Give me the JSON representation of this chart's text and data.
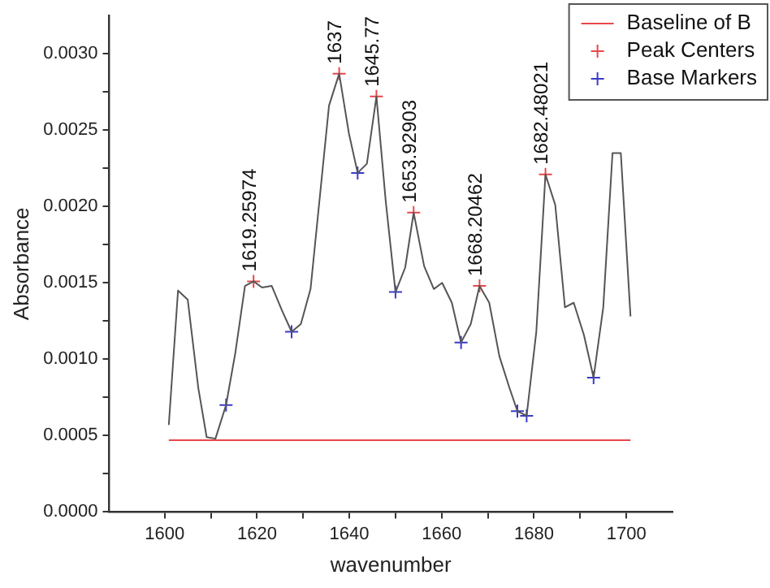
{
  "chart_data": {
    "type": "line",
    "xlabel": "wavenumber",
    "ylabel": "Absorbance",
    "legend": "top right",
    "grid": false,
    "xlim": [
      1588,
      1710
    ],
    "ylim": [
      0,
      0.00325
    ],
    "xticks": [
      1600,
      {
        "value": 1610,
        "label": null
      },
      1620,
      {
        "value": 1630,
        "label": null
      },
      1640,
      {
        "value": 1650,
        "label": null
      },
      1660,
      {
        "value": 1670,
        "label": null
      },
      1680,
      {
        "value": 1690,
        "label": null
      },
      1700
    ],
    "yticks": [
      {
        "value": 0,
        "label": "0.0000"
      },
      {
        "value": 0.00025,
        "label": null
      },
      {
        "value": 0.0005,
        "label": "0.0005"
      },
      {
        "value": 0.00075,
        "label": null
      },
      {
        "value": 0.001,
        "label": "0.0010"
      },
      {
        "value": 0.00125,
        "label": null
      },
      {
        "value": 0.0015,
        "label": "0.0015"
      },
      {
        "value": 0.00175,
        "label": null
      },
      {
        "value": 0.002,
        "label": "0.0020"
      },
      {
        "value": 0.00225,
        "label": null
      },
      {
        "value": 0.0025,
        "label": "0.0025"
      },
      {
        "value": 0.00275,
        "label": null
      },
      {
        "value": 0.003,
        "label": "0.0030"
      }
    ],
    "series": [
      {
        "color": "#555555",
        "x": [
          1600.9,
          1602.9,
          1605.0,
          1607.3,
          1609.1,
          1611.0,
          1613.3,
          1615.3,
          1617.4,
          1619.26,
          1621.1,
          1623.2,
          1625.4,
          1627.5,
          1629.5,
          1631.6,
          1633.5,
          1635.6,
          1637.8,
          1639.9,
          1641.8,
          1643.8,
          1645.87,
          1647.9,
          1650.0,
          1652.1,
          1653.93,
          1656.2,
          1658.3,
          1660.1,
          1662.2,
          1664.2,
          1666.3,
          1668.2,
          1670.3,
          1672.5,
          1674.6,
          1676.4,
          1678.4,
          1680.5,
          1682.48,
          1684.6,
          1686.7,
          1688.6,
          1690.8,
          1692.9,
          1695.0,
          1697.0,
          1698.8,
          1700.9
        ],
        "values": [
          0.00057,
          0.00145,
          0.00139,
          0.00081,
          0.00049,
          0.00048,
          0.0007,
          0.00104,
          0.00148,
          0.00151,
          0.00147,
          0.00148,
          0.00132,
          0.00118,
          0.00123,
          0.00146,
          0.00203,
          0.00266,
          0.00287,
          0.00248,
          0.00222,
          0.00228,
          0.00272,
          0.00203,
          0.00144,
          0.0016,
          0.00196,
          0.00161,
          0.00146,
          0.0015,
          0.00137,
          0.00111,
          0.00123,
          0.00148,
          0.00137,
          0.00102,
          0.00082,
          0.00066,
          0.00063,
          0.00118,
          0.00221,
          0.00201,
          0.00134,
          0.00137,
          0.00116,
          0.00088,
          0.00134,
          0.00235,
          0.00235,
          0.00128
        ]
      },
      {
        "type": "line",
        "name": "Baseline of B",
        "color": "#e8474a",
        "x": [
          1600.9,
          1700.9
        ],
        "values": [
          0.00047,
          0.00047
        ]
      },
      {
        "type": "scatter",
        "name": "Peak Centers",
        "marker": "cross",
        "color": "#e8474a",
        "x": [
          1619.26,
          1637.8,
          1645.87,
          1653.93,
          1668.2,
          1682.48
        ],
        "values": [
          0.00151,
          0.00287,
          0.00272,
          0.00196,
          0.00148,
          0.00221
        ]
      },
      {
        "type": "scatter",
        "name": "Base Markers",
        "marker": "cross",
        "color": "#3a3acc",
        "x": [
          1613.3,
          1627.5,
          1641.8,
          1650.0,
          1664.2,
          1676.4,
          1678.4,
          1692.9
        ],
        "values": [
          0.0007,
          0.00118,
          0.00222,
          0.00144,
          0.00111,
          0.00066,
          0.00063,
          0.00088
        ]
      }
    ],
    "annotations": [
      {
        "text": "1619.25974",
        "x": 1619.26,
        "y": 0.00151
      },
      {
        "text": "1637",
        "x": 1637.8,
        "y": 0.00287
      },
      {
        "text": "1645.77",
        "x": 1645.87,
        "y": 0.00272
      },
      {
        "text": "1653.92903",
        "x": 1653.93,
        "y": 0.00196
      },
      {
        "text": "1668.20462",
        "x": 1668.2,
        "y": 0.00148
      },
      {
        "text": "1682.48021",
        "x": 1682.48,
        "y": 0.00221
      }
    ]
  }
}
